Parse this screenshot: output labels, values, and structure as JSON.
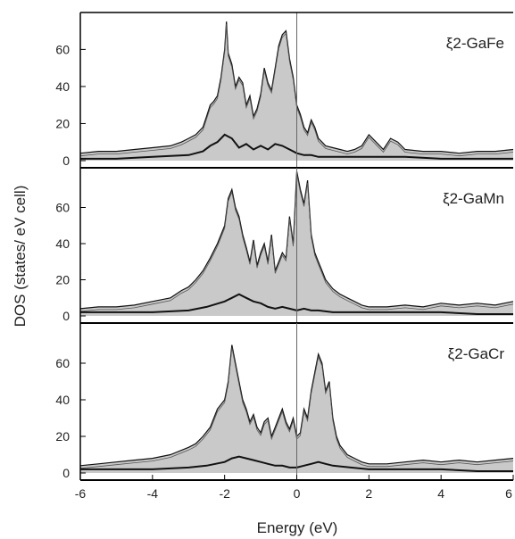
{
  "chart_data": {
    "type": "line",
    "xlabel": "Energy (eV)",
    "ylabel": "DOS (states/ eV cell)",
    "xlim": [
      -6,
      6
    ],
    "x_ticks": [
      "-6",
      "-4",
      "-2",
      "0",
      "2",
      "4",
      "6"
    ],
    "fermi_level": 0,
    "panels": [
      {
        "label": "ξ2-GaFe",
        "ylim": [
          0,
          78
        ],
        "y_ticks": [
          "0",
          "20",
          "40",
          "60"
        ],
        "total_dos": {
          "x": [
            -6,
            -5.5,
            -5,
            -4.5,
            -4,
            -3.5,
            -3.2,
            -3,
            -2.8,
            -2.6,
            -2.5,
            -2.4,
            -2.3,
            -2.2,
            -2.1,
            -2.0,
            -1.95,
            -1.9,
            -1.8,
            -1.7,
            -1.6,
            -1.5,
            -1.4,
            -1.3,
            -1.2,
            -1.1,
            -1.0,
            -0.9,
            -0.8,
            -0.7,
            -0.6,
            -0.5,
            -0.4,
            -0.3,
            -0.2,
            -0.1,
            0,
            0.1,
            0.2,
            0.3,
            0.4,
            0.5,
            0.6,
            0.7,
            0.8,
            1.0,
            1.2,
            1.4,
            1.6,
            1.8,
            2.0,
            2.2,
            2.4,
            2.6,
            2.8,
            3.0,
            3.5,
            4.0,
            4.5,
            5.0,
            5.5,
            6.0
          ],
          "y": [
            4,
            5,
            5,
            6,
            7,
            8,
            10,
            12,
            14,
            18,
            24,
            30,
            32,
            35,
            45,
            60,
            75,
            58,
            52,
            40,
            45,
            42,
            30,
            35,
            24,
            28,
            36,
            50,
            42,
            38,
            50,
            62,
            68,
            70,
            55,
            45,
            30,
            25,
            18,
            15,
            22,
            18,
            12,
            10,
            8,
            7,
            6,
            5,
            6,
            8,
            14,
            10,
            6,
            12,
            10,
            6,
            5,
            5,
            4,
            5,
            5,
            6
          ]
        },
        "partial_dos": {
          "x": [
            -6,
            -5,
            -4,
            -3,
            -2.6,
            -2.4,
            -2.2,
            -2.0,
            -1.8,
            -1.6,
            -1.4,
            -1.2,
            -1.0,
            -0.8,
            -0.6,
            -0.4,
            -0.2,
            0,
            0.2,
            0.4,
            0.6,
            1.0,
            2.0,
            3.0,
            4.0,
            5.0,
            6.0
          ],
          "y": [
            1,
            1,
            2,
            3,
            5,
            8,
            10,
            14,
            12,
            7,
            9,
            6,
            8,
            6,
            9,
            8,
            6,
            4,
            3,
            3,
            2,
            2,
            2,
            2,
            1,
            1,
            1
          ]
        }
      },
      {
        "label": "ξ2-GaMn",
        "ylim": [
          0,
          80
        ],
        "y_ticks": [
          "0",
          "20",
          "40",
          "60"
        ],
        "total_dos": {
          "x": [
            -6,
            -5.5,
            -5,
            -4.5,
            -4,
            -3.5,
            -3.2,
            -3,
            -2.8,
            -2.6,
            -2.4,
            -2.2,
            -2.0,
            -1.9,
            -1.8,
            -1.7,
            -1.6,
            -1.5,
            -1.4,
            -1.3,
            -1.2,
            -1.1,
            -1.0,
            -0.9,
            -0.8,
            -0.7,
            -0.6,
            -0.5,
            -0.4,
            -0.3,
            -0.2,
            -0.1,
            0,
            0.1,
            0.2,
            0.3,
            0.4,
            0.5,
            0.6,
            0.7,
            0.8,
            1.0,
            1.2,
            1.4,
            1.6,
            1.8,
            2.0,
            2.5,
            3.0,
            3.5,
            4.0,
            4.5,
            5.0,
            5.5,
            6.0
          ],
          "y": [
            4,
            5,
            5,
            6,
            8,
            10,
            14,
            16,
            20,
            25,
            32,
            40,
            50,
            65,
            70,
            60,
            55,
            45,
            38,
            30,
            42,
            28,
            35,
            40,
            30,
            45,
            25,
            30,
            35,
            32,
            55,
            40,
            80,
            70,
            62,
            75,
            45,
            35,
            30,
            25,
            20,
            15,
            12,
            10,
            8,
            6,
            5,
            5,
            6,
            5,
            7,
            6,
            7,
            6,
            8
          ]
        },
        "partial_dos": {
          "x": [
            -6,
            -5,
            -4,
            -3,
            -2.5,
            -2.0,
            -1.8,
            -1.6,
            -1.4,
            -1.2,
            -1.0,
            -0.8,
            -0.6,
            -0.4,
            -0.2,
            0,
            0.2,
            0.4,
            0.6,
            1.0,
            1.5,
            2.0,
            3.0,
            4.0,
            5.0,
            6.0
          ],
          "y": [
            2,
            2,
            2,
            3,
            5,
            8,
            10,
            12,
            10,
            8,
            7,
            5,
            4,
            5,
            4,
            3,
            4,
            3,
            3,
            2,
            2,
            2,
            2,
            2,
            1,
            1
          ]
        }
      },
      {
        "label": "ξ2-GaCr",
        "ylim": [
          0,
          80
        ],
        "y_ticks": [
          "0",
          "20",
          "40",
          "60"
        ],
        "total_dos": {
          "x": [
            -6,
            -5.5,
            -5,
            -4.5,
            -4,
            -3.5,
            -3,
            -2.8,
            -2.6,
            -2.4,
            -2.2,
            -2.0,
            -1.9,
            -1.8,
            -1.7,
            -1.6,
            -1.5,
            -1.4,
            -1.3,
            -1.2,
            -1.1,
            -1.0,
            -0.9,
            -0.8,
            -0.7,
            -0.6,
            -0.5,
            -0.4,
            -0.3,
            -0.2,
            -0.1,
            0,
            0.1,
            0.2,
            0.3,
            0.4,
            0.5,
            0.6,
            0.7,
            0.8,
            0.9,
            1.0,
            1.1,
            1.2,
            1.4,
            1.6,
            1.8,
            2.0,
            2.5,
            3.0,
            3.5,
            4.0,
            4.5,
            5.0,
            5.5,
            6.0
          ],
          "y": [
            4,
            5,
            6,
            7,
            8,
            10,
            14,
            16,
            20,
            25,
            35,
            40,
            50,
            70,
            60,
            50,
            40,
            35,
            28,
            32,
            25,
            22,
            28,
            30,
            20,
            25,
            30,
            35,
            28,
            24,
            30,
            20,
            22,
            35,
            30,
            45,
            55,
            65,
            60,
            45,
            50,
            30,
            20,
            15,
            10,
            8,
            6,
            5,
            5,
            6,
            7,
            6,
            7,
            6,
            7,
            8
          ]
        },
        "partial_dos": {
          "x": [
            -6,
            -5,
            -4,
            -3,
            -2.5,
            -2.0,
            -1.8,
            -1.6,
            -1.4,
            -1.2,
            -1.0,
            -0.8,
            -0.6,
            -0.4,
            -0.2,
            0,
            0.2,
            0.4,
            0.6,
            0.8,
            1.0,
            1.5,
            2.0,
            3.0,
            4.0,
            5.0,
            6.0
          ],
          "y": [
            2,
            2,
            2,
            3,
            4,
            6,
            8,
            9,
            8,
            7,
            6,
            5,
            4,
            4,
            3,
            3,
            4,
            5,
            6,
            5,
            4,
            3,
            2,
            2,
            2,
            1,
            1
          ]
        }
      }
    ],
    "colors": {
      "fill": "#c9c9c9",
      "line": "#111111",
      "axis": "#000000"
    }
  }
}
